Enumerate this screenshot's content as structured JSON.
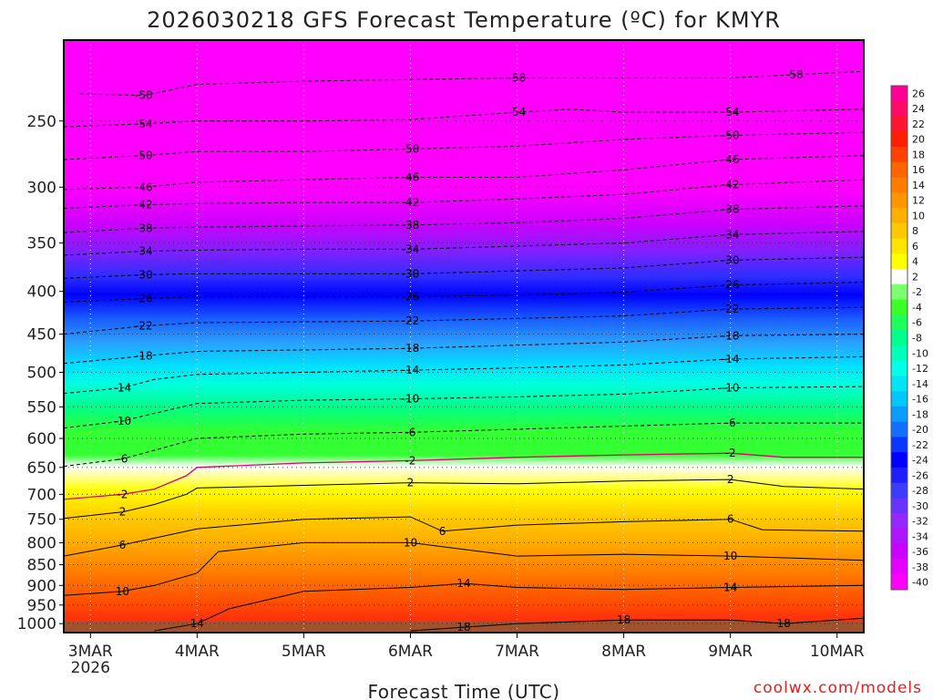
{
  "chart_data": {
    "type": "heatmap",
    "title": "2026030218 GFS Forecast Temperature (ºC) for KMYR",
    "xlabel": "Forecast Time (UTC)",
    "credit": "coolwx.com/models",
    "y_axis": {
      "quantity": "pressure (hPa)",
      "ticks": [
        250,
        300,
        350,
        400,
        450,
        500,
        550,
        600,
        650,
        700,
        750,
        800,
        850,
        900,
        950,
        1000
      ],
      "range": [
        1025,
        200
      ]
    },
    "x_axis": {
      "ticks": [
        {
          "label": "3MAR",
          "sublabel": "2026",
          "day": 3
        },
        {
          "label": "4MAR",
          "day": 4
        },
        {
          "label": "5MAR",
          "day": 5
        },
        {
          "label": "6MAR",
          "day": 6
        },
        {
          "label": "7MAR",
          "day": 7
        },
        {
          "label": "8MAR",
          "day": 8
        },
        {
          "label": "9MAR",
          "day": 9
        },
        {
          "label": "10MAR",
          "day": 10
        }
      ],
      "range_days": [
        2.75,
        10.25
      ]
    },
    "colorbar": {
      "ticks": [
        26,
        24,
        22,
        20,
        18,
        16,
        14,
        12,
        10,
        8,
        6,
        4,
        2,
        -2,
        -4,
        -6,
        -8,
        -10,
        -12,
        -14,
        -16,
        -18,
        -20,
        -22,
        -24,
        -26,
        -28,
        -30,
        -32,
        -34,
        -36,
        -38,
        -40
      ]
    },
    "series": [
      {
        "name": "-58",
        "x": [
          2.9,
          3.5,
          4.0,
          5.0,
          6.0,
          7.0,
          8.0,
          9.0,
          9.6,
          10.25
        ],
        "p": [
          232,
          233,
          226,
          224,
          223,
          222,
          222,
          222,
          220,
          218
        ]
      },
      {
        "name": "-54",
        "x": [
          2.75,
          3.5,
          4.0,
          5.0,
          6.0,
          7.0,
          7.5,
          8.0,
          9.0,
          10.25
        ],
        "p": [
          254,
          252,
          250,
          250,
          249,
          244,
          242,
          244,
          244,
          242
        ]
      },
      {
        "name": "-50",
        "x": [
          2.75,
          3.5,
          4.0,
          5.0,
          6.0,
          7.0,
          8.0,
          9.0,
          10.25
        ],
        "p": [
          278,
          275,
          272,
          272,
          270,
          268,
          263,
          260,
          258
        ]
      },
      {
        "name": "-46",
        "x": [
          2.75,
          3.5,
          4.0,
          5.0,
          6.0,
          7.0,
          8.0,
          9.0,
          10.25
        ],
        "p": [
          302,
          300,
          296,
          294,
          292,
          292,
          286,
          278,
          275
        ]
      },
      {
        "name": "-42",
        "x": [
          2.75,
          3.5,
          4.0,
          5.0,
          6.0,
          7.0,
          8.0,
          9.0,
          10.25
        ],
        "p": [
          318,
          315,
          314,
          313,
          313,
          310,
          306,
          298,
          294
        ]
      },
      {
        "name": "-38",
        "x": [
          2.75,
          3.5,
          4.0,
          5.0,
          6.0,
          7.0,
          8.0,
          9.0,
          10.25
        ],
        "p": [
          340,
          336,
          335,
          334,
          333,
          331,
          327,
          319,
          316
        ]
      },
      {
        "name": "-34",
        "x": [
          2.75,
          3.5,
          4.0,
          5.0,
          6.0,
          7.0,
          8.0,
          9.0,
          10.25
        ],
        "p": [
          362,
          358,
          357,
          356,
          356,
          353,
          350,
          342,
          339
        ]
      },
      {
        "name": "-30",
        "x": [
          2.75,
          3.5,
          4.0,
          5.0,
          6.0,
          7.0,
          8.0,
          9.0,
          10.25
        ],
        "p": [
          386,
          382,
          381,
          381,
          381,
          378,
          375,
          367,
          364
        ]
      },
      {
        "name": "-26",
        "x": [
          2.75,
          3.5,
          4.0,
          5.0,
          6.0,
          7.0,
          8.0,
          9.0,
          10.25
        ],
        "p": [
          412,
          408,
          406,
          406,
          406,
          404,
          401,
          393,
          390
        ]
      },
      {
        "name": "-22",
        "x": [
          2.75,
          3.5,
          4.0,
          5.0,
          6.0,
          7.0,
          8.0,
          9.0,
          10.25
        ],
        "p": [
          450,
          440,
          436,
          435,
          434,
          431,
          428,
          420,
          418
        ]
      },
      {
        "name": "-18",
        "x": [
          2.75,
          3.5,
          4.0,
          5.0,
          6.0,
          7.0,
          8.0,
          9.0,
          10.25
        ],
        "p": [
          488,
          478,
          472,
          470,
          468,
          464,
          460,
          452,
          450
        ]
      },
      {
        "name": "-14",
        "x": [
          2.75,
          3.3,
          3.6,
          4.0,
          5.0,
          6.0,
          7.0,
          8.0,
          9.0,
          10.25
        ],
        "p": [
          530,
          522,
          510,
          503,
          500,
          497,
          494,
          490,
          482,
          479
        ]
      },
      {
        "name": "-10",
        "x": [
          2.75,
          3.3,
          3.6,
          4.0,
          5.0,
          6.0,
          7.0,
          8.0,
          9.0,
          10.25
        ],
        "p": [
          583,
          572,
          560,
          545,
          540,
          538,
          535,
          531,
          522,
          520
        ]
      },
      {
        "name": "-6",
        "x": [
          2.75,
          3.3,
          3.6,
          4.0,
          5.0,
          6.0,
          7.0,
          8.0,
          9.0,
          10.25
        ],
        "p": [
          648,
          635,
          620,
          600,
          593,
          590,
          585,
          580,
          575,
          575
        ]
      },
      {
        "name": "-2",
        "x": [
          2.75,
          3.3,
          3.6,
          3.9,
          4.0,
          5.0,
          6.0,
          7.0,
          8.0,
          9.0,
          9.5,
          10.25
        ],
        "p": [
          710,
          700,
          690,
          665,
          650,
          642,
          638,
          632,
          628,
          625,
          632,
          632
        ]
      },
      {
        "name": "2",
        "x": [
          2.75,
          3.3,
          3.6,
          3.9,
          4.0,
          5.0,
          6.0,
          7.0,
          8.0,
          9.0,
          9.5,
          10.25
        ],
        "p": [
          748,
          735,
          720,
          700,
          688,
          683,
          678,
          680,
          675,
          672,
          685,
          690
        ]
      },
      {
        "name": "6",
        "x": [
          2.75,
          3.3,
          3.6,
          4.0,
          5.0,
          6.0,
          6.3,
          7.0,
          8.0,
          9.0,
          9.3,
          10.25
        ],
        "p": [
          830,
          805,
          790,
          770,
          750,
          745,
          775,
          762,
          755,
          750,
          772,
          775
        ]
      },
      {
        "name": "10",
        "x": [
          2.75,
          3.3,
          3.6,
          4.0,
          4.2,
          5.0,
          6.0,
          7.0,
          8.0,
          9.0,
          10.25
        ],
        "p": [
          925,
          915,
          900,
          870,
          820,
          800,
          800,
          830,
          826,
          830,
          840
        ]
      },
      {
        "name": "14",
        "x": [
          3.6,
          4.0,
          4.3,
          5.0,
          6.0,
          6.5,
          7.0,
          8.0,
          9.0,
          10.25
        ],
        "p": [
          1020,
          1000,
          960,
          915,
          905,
          895,
          905,
          910,
          905,
          900
        ]
      },
      {
        "name": "18",
        "x": [
          6.0,
          6.5,
          7.0,
          8.0,
          9.0,
          9.5,
          10.25
        ],
        "p": [
          1020,
          1010,
          1000,
          990,
          990,
          1000,
          985
        ]
      }
    ]
  }
}
